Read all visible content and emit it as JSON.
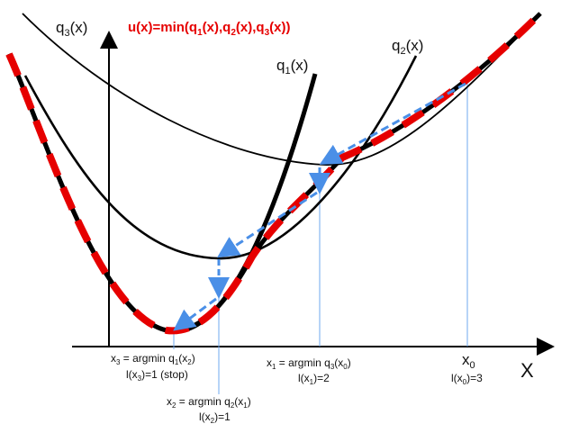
{
  "title": {
    "main_a": "u(x)=min(q",
    "sub1": "1",
    "main_b": "(x),q",
    "sub2": "2",
    "main_c": "(x),q",
    "sub3": "3",
    "main_d": "(x))"
  },
  "axis": {
    "x_label": "X"
  },
  "curves": {
    "q3": {
      "base": "q",
      "sub": "3",
      "tail": "(x)"
    },
    "q2": {
      "base": "q",
      "sub": "2",
      "tail": "(x)"
    },
    "q1": {
      "base": "q",
      "sub": "1",
      "tail": "(x)"
    }
  },
  "annotations": {
    "x0": {
      "line1_base": "x",
      "line1_sub": "0",
      "line2_a": "l(x",
      "line2_sub": "0",
      "line2_b": ")=3"
    },
    "x1": {
      "line1_a": "x",
      "line1_sub1": "1",
      "line1_b": " = argmin q",
      "line1_sub2": "3",
      "line1_c": "(x",
      "line1_sub3": "0",
      "line1_d": ")",
      "line2_a": "l(x",
      "line2_sub": "1",
      "line2_b": ")=2"
    },
    "x2": {
      "line1_a": "x",
      "line1_sub1": "2",
      "line1_b": " = argmin q",
      "line1_sub2": "2",
      "line1_c": "(x",
      "line1_sub3": "1",
      "line1_d": ")",
      "line2_a": "l(x",
      "line2_sub": "2",
      "line2_b": ")=1"
    },
    "x3": {
      "line1_a": "x",
      "line1_sub1": "3",
      "line1_b": " = argmin q",
      "line1_sub2": "1",
      "line1_c": "(x",
      "line1_sub3": "2",
      "line1_d": ")",
      "line2_a": "l(x",
      "line2_sub": "3",
      "line2_b": ")=1 (stop)"
    }
  },
  "colors": {
    "curve": "#000000",
    "envelope": "#e60000",
    "arrow": "#4a8fe7",
    "guide": "#6fa8ef",
    "title": "#e60000"
  }
}
